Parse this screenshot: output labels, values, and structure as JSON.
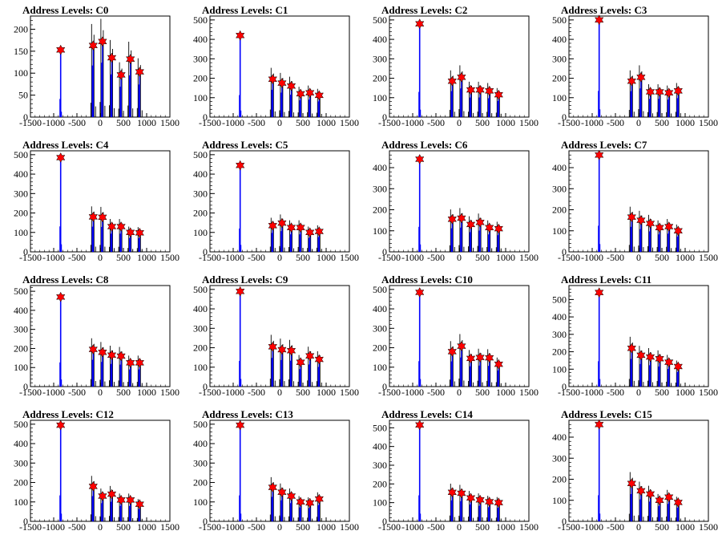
{
  "figure": {
    "x_ticks": [
      -1500,
      -1000,
      -500,
      0,
      500,
      1000,
      1500
    ],
    "x_tick_labels": [
      "-1500",
      "-1000",
      "-500",
      "0",
      "500",
      "1000",
      "1500"
    ],
    "xlim": [
      -1500,
      1500
    ],
    "colors": {
      "frame": "#000000",
      "tall_peak": "#0000ff",
      "marker": "#ff0000",
      "background": "#ffffff"
    },
    "marker_icon": "star-marker-icon"
  },
  "chart_data": [
    {
      "type": "bar",
      "title": "Address Levels: C0",
      "xlim": [
        -1500,
        1500
      ],
      "ylim": [
        0,
        230
      ],
      "y_ticks": [
        0,
        50,
        100,
        150,
        200
      ],
      "peaks": [
        {
          "x": -850,
          "y": 153
        },
        {
          "x": -150,
          "y": 163
        },
        {
          "x": 50,
          "y": 172
        },
        {
          "x": 250,
          "y": 135
        },
        {
          "x": 450,
          "y": 96
        },
        {
          "x": 650,
          "y": 132
        },
        {
          "x": 850,
          "y": 103
        }
      ]
    },
    {
      "type": "bar",
      "title": "Address Levels: C1",
      "xlim": [
        -1500,
        1500
      ],
      "ylim": [
        0,
        520
      ],
      "y_ticks": [
        0,
        100,
        200,
        300,
        400,
        500
      ],
      "peaks": [
        {
          "x": -850,
          "y": 420
        },
        {
          "x": -150,
          "y": 195
        },
        {
          "x": 50,
          "y": 175
        },
        {
          "x": 250,
          "y": 160
        },
        {
          "x": 450,
          "y": 120
        },
        {
          "x": 650,
          "y": 125
        },
        {
          "x": 850,
          "y": 112
        }
      ]
    },
    {
      "type": "bar",
      "title": "Address Levels: C2",
      "xlim": [
        -1500,
        1500
      ],
      "ylim": [
        0,
        520
      ],
      "y_ticks": [
        0,
        100,
        200,
        300,
        400,
        500
      ],
      "peaks": [
        {
          "x": -850,
          "y": 480
        },
        {
          "x": -150,
          "y": 185
        },
        {
          "x": 50,
          "y": 205
        },
        {
          "x": 250,
          "y": 140
        },
        {
          "x": 450,
          "y": 140
        },
        {
          "x": 650,
          "y": 135
        },
        {
          "x": 850,
          "y": 115
        }
      ]
    },
    {
      "type": "bar",
      "title": "Address Levels: C3",
      "xlim": [
        -1500,
        1500
      ],
      "ylim": [
        0,
        520
      ],
      "y_ticks": [
        0,
        100,
        200,
        300,
        400,
        500
      ],
      "peaks": [
        {
          "x": -850,
          "y": 500
        },
        {
          "x": -150,
          "y": 185
        },
        {
          "x": 50,
          "y": 205
        },
        {
          "x": 250,
          "y": 130
        },
        {
          "x": 450,
          "y": 130
        },
        {
          "x": 650,
          "y": 125
        },
        {
          "x": 850,
          "y": 135
        }
      ]
    },
    {
      "type": "bar",
      "title": "Address Levels: C4",
      "xlim": [
        -1500,
        1500
      ],
      "ylim": [
        0,
        520
      ],
      "y_ticks": [
        0,
        100,
        200,
        300,
        400,
        500
      ],
      "peaks": [
        {
          "x": -850,
          "y": 485
        },
        {
          "x": -150,
          "y": 180
        },
        {
          "x": 50,
          "y": 178
        },
        {
          "x": 250,
          "y": 130
        },
        {
          "x": 450,
          "y": 130
        },
        {
          "x": 650,
          "y": 100
        },
        {
          "x": 850,
          "y": 98
        }
      ]
    },
    {
      "type": "bar",
      "title": "Address Levels: C5",
      "xlim": [
        -1500,
        1500
      ],
      "ylim": [
        0,
        520
      ],
      "y_ticks": [
        0,
        100,
        200,
        300,
        400,
        500
      ],
      "peaks": [
        {
          "x": -850,
          "y": 445
        },
        {
          "x": -150,
          "y": 135
        },
        {
          "x": 50,
          "y": 148
        },
        {
          "x": 250,
          "y": 125
        },
        {
          "x": 450,
          "y": 125
        },
        {
          "x": 650,
          "y": 100
        },
        {
          "x": 850,
          "y": 105
        }
      ]
    },
    {
      "type": "bar",
      "title": "Address Levels: C6",
      "xlim": [
        -1500,
        1500
      ],
      "ylim": [
        0,
        480
      ],
      "y_ticks": [
        0,
        100,
        200,
        300,
        400
      ],
      "peaks": [
        {
          "x": -850,
          "y": 440
        },
        {
          "x": -150,
          "y": 155
        },
        {
          "x": 50,
          "y": 160
        },
        {
          "x": 250,
          "y": 130
        },
        {
          "x": 450,
          "y": 140
        },
        {
          "x": 650,
          "y": 115
        },
        {
          "x": 850,
          "y": 110
        }
      ]
    },
    {
      "type": "bar",
      "title": "Address Levels: C7",
      "xlim": [
        -1500,
        1500
      ],
      "ylim": [
        0,
        480
      ],
      "y_ticks": [
        0,
        100,
        200,
        300,
        400
      ],
      "peaks": [
        {
          "x": -850,
          "y": 460
        },
        {
          "x": -150,
          "y": 165
        },
        {
          "x": 50,
          "y": 150
        },
        {
          "x": 250,
          "y": 135
        },
        {
          "x": 450,
          "y": 115
        },
        {
          "x": 650,
          "y": 120
        },
        {
          "x": 850,
          "y": 100
        }
      ]
    },
    {
      "type": "bar",
      "title": "Address Levels: C8",
      "xlim": [
        -1500,
        1500
      ],
      "ylim": [
        0,
        530
      ],
      "y_ticks": [
        0,
        100,
        200,
        300,
        400,
        500
      ],
      "peaks": [
        {
          "x": -850,
          "y": 470
        },
        {
          "x": -150,
          "y": 195
        },
        {
          "x": 50,
          "y": 180
        },
        {
          "x": 250,
          "y": 165
        },
        {
          "x": 450,
          "y": 160
        },
        {
          "x": 650,
          "y": 125
        },
        {
          "x": 850,
          "y": 125
        }
      ]
    },
    {
      "type": "bar",
      "title": "Address Levels: C9",
      "xlim": [
        -1500,
        1500
      ],
      "ylim": [
        0,
        520
      ],
      "y_ticks": [
        0,
        100,
        200,
        300,
        400,
        500
      ],
      "peaks": [
        {
          "x": -850,
          "y": 490
        },
        {
          "x": -150,
          "y": 205
        },
        {
          "x": 50,
          "y": 190
        },
        {
          "x": 250,
          "y": 185
        },
        {
          "x": 450,
          "y": 125
        },
        {
          "x": 650,
          "y": 158
        },
        {
          "x": 850,
          "y": 140
        }
      ]
    },
    {
      "type": "bar",
      "title": "Address Levels: C10",
      "xlim": [
        -1500,
        1500
      ],
      "ylim": [
        0,
        520
      ],
      "y_ticks": [
        0,
        100,
        200,
        300,
        400,
        500
      ],
      "peaks": [
        {
          "x": -850,
          "y": 485
        },
        {
          "x": -150,
          "y": 180
        },
        {
          "x": 50,
          "y": 208
        },
        {
          "x": 250,
          "y": 145
        },
        {
          "x": 450,
          "y": 150
        },
        {
          "x": 650,
          "y": 148
        },
        {
          "x": 850,
          "y": 115
        }
      ]
    },
    {
      "type": "bar",
      "title": "Address Levels: C11",
      "xlim": [
        -1500,
        1500
      ],
      "ylim": [
        0,
        580
      ],
      "y_ticks": [
        0,
        100,
        200,
        300,
        400,
        500
      ],
      "peaks": [
        {
          "x": -850,
          "y": 540
        },
        {
          "x": -150,
          "y": 220
        },
        {
          "x": 50,
          "y": 180
        },
        {
          "x": 250,
          "y": 170
        },
        {
          "x": 450,
          "y": 160
        },
        {
          "x": 650,
          "y": 140
        },
        {
          "x": 850,
          "y": 115
        }
      ]
    },
    {
      "type": "bar",
      "title": "Address Levels: C12",
      "xlim": [
        -1500,
        1500
      ],
      "ylim": [
        0,
        520
      ],
      "y_ticks": [
        0,
        100,
        200,
        300,
        400,
        500
      ],
      "peaks": [
        {
          "x": -850,
          "y": 495
        },
        {
          "x": -150,
          "y": 180
        },
        {
          "x": 50,
          "y": 130
        },
        {
          "x": 250,
          "y": 140
        },
        {
          "x": 450,
          "y": 110
        },
        {
          "x": 650,
          "y": 110
        },
        {
          "x": 850,
          "y": 88
        }
      ]
    },
    {
      "type": "bar",
      "title": "Address Levels: C13",
      "xlim": [
        -1500,
        1500
      ],
      "ylim": [
        0,
        520
      ],
      "y_ticks": [
        0,
        100,
        200,
        300,
        400,
        500
      ],
      "peaks": [
        {
          "x": -850,
          "y": 495
        },
        {
          "x": -150,
          "y": 175
        },
        {
          "x": 50,
          "y": 150
        },
        {
          "x": 250,
          "y": 130
        },
        {
          "x": 450,
          "y": 100
        },
        {
          "x": 650,
          "y": 95
        },
        {
          "x": 850,
          "y": 115
        }
      ]
    },
    {
      "type": "bar",
      "title": "Address Levels: C14",
      "xlim": [
        -1500,
        1500
      ],
      "ylim": [
        0,
        540
      ],
      "y_ticks": [
        0,
        100,
        200,
        300,
        400,
        500
      ],
      "peaks": [
        {
          "x": -850,
          "y": 515
        },
        {
          "x": -150,
          "y": 155
        },
        {
          "x": 50,
          "y": 150
        },
        {
          "x": 250,
          "y": 125
        },
        {
          "x": 450,
          "y": 115
        },
        {
          "x": 650,
          "y": 105
        },
        {
          "x": 850,
          "y": 100
        }
      ]
    },
    {
      "type": "bar",
      "title": "Address Levels: C15",
      "xlim": [
        -1500,
        1500
      ],
      "ylim": [
        0,
        480
      ],
      "y_ticks": [
        0,
        100,
        200,
        300,
        400
      ],
      "peaks": [
        {
          "x": -850,
          "y": 460
        },
        {
          "x": -150,
          "y": 180
        },
        {
          "x": 50,
          "y": 145
        },
        {
          "x": 250,
          "y": 130
        },
        {
          "x": 450,
          "y": 100
        },
        {
          "x": 650,
          "y": 115
        },
        {
          "x": 850,
          "y": 90
        }
      ]
    }
  ]
}
